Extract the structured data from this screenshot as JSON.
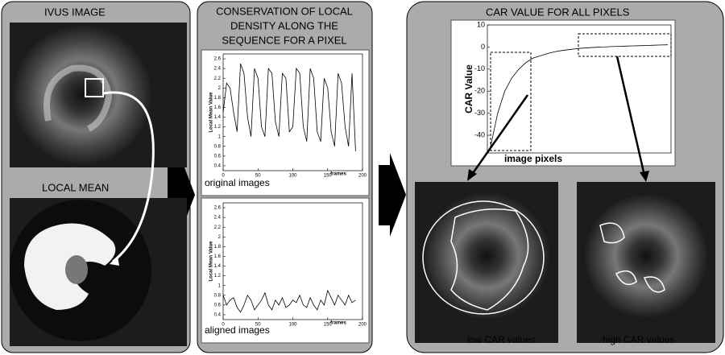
{
  "left_panel": {
    "title": "IVUS IMAGE",
    "subtitle": "LOCAL MEAN"
  },
  "middle_panel": {
    "title": [
      "CONSERVATION OF LOCAL",
      "DENSITY ALONG THE",
      "SEQUENCE FOR A PIXEL"
    ],
    "charts": [
      {
        "type": "line",
        "caption": "original images",
        "y_label": "Local Mean Value",
        "x_label": "frames",
        "x": [
          0,
          5,
          10,
          15,
          20,
          25,
          30,
          35,
          40,
          45,
          50,
          55,
          60,
          65,
          70,
          75,
          80,
          85,
          90,
          95,
          100,
          105,
          110,
          115,
          120,
          125,
          130,
          135,
          140,
          145,
          150,
          155,
          160,
          165,
          170,
          175,
          180,
          185,
          190
        ],
        "values": [
          1.5,
          2.1,
          2.0,
          1.5,
          1.1,
          2.5,
          2.3,
          1.4,
          1.0,
          2.4,
          2.2,
          1.2,
          1.0,
          2.4,
          2.3,
          1.3,
          1.0,
          2.3,
          2.2,
          1.1,
          1.2,
          2.4,
          2.3,
          1.2,
          0.9,
          2.4,
          2.2,
          1.1,
          0.9,
          2.2,
          2.0,
          1.1,
          0.8,
          2.3,
          2.1,
          1.2,
          0.8,
          2.3,
          0.7
        ],
        "color": "#000000",
        "xlim": [
          0,
          200
        ],
        "ylim": [
          0.3,
          2.7
        ],
        "xticks": [
          0,
          50,
          100,
          150,
          200
        ],
        "yticks": [
          0.4,
          0.6,
          0.8,
          1,
          1.2,
          1.4,
          1.6,
          1.8,
          2,
          2.2,
          2.4,
          2.6
        ]
      },
      {
        "type": "line",
        "caption": "aligned images",
        "y_label": "Local Mean Value",
        "x_label": "frames",
        "x": [
          0,
          5,
          10,
          15,
          20,
          25,
          30,
          35,
          40,
          45,
          50,
          55,
          60,
          65,
          70,
          75,
          80,
          85,
          90,
          95,
          100,
          105,
          110,
          115,
          120,
          125,
          130,
          135,
          140,
          145,
          150,
          155,
          160,
          165,
          170,
          175,
          180,
          185,
          190
        ],
        "values": [
          0.8,
          0.6,
          0.7,
          0.75,
          0.55,
          0.45,
          0.6,
          0.8,
          0.7,
          0.5,
          0.6,
          0.7,
          0.85,
          0.6,
          0.5,
          0.7,
          0.6,
          0.75,
          0.55,
          0.6,
          0.7,
          0.65,
          0.8,
          0.6,
          0.55,
          0.75,
          0.6,
          0.5,
          0.7,
          0.6,
          0.9,
          0.75,
          0.6,
          0.8,
          0.7,
          0.6,
          0.8,
          0.65,
          0.7
        ],
        "color": "#000000",
        "xlim": [
          0,
          200
        ],
        "ylim": [
          0.3,
          2.7
        ],
        "xticks": [
          0,
          50,
          100,
          150,
          200
        ],
        "yticks": [
          0.4,
          0.6,
          0.8,
          1,
          1.2,
          1.4,
          1.6,
          1.8,
          2,
          2.2,
          2.4,
          2.6
        ]
      }
    ]
  },
  "right_panel": {
    "title": "CAR VALUE FOR ALL PIXELS",
    "chart": {
      "type": "line",
      "y_label": "CAR Value",
      "x_label": "image pixels",
      "color": "#000000",
      "values": [
        -45,
        -30,
        -20,
        -14,
        -10,
        -7,
        -5,
        -4,
        -3,
        -2.2,
        -1.6,
        -1.2,
        -0.8,
        -0.5,
        -0.3,
        -0.1,
        0,
        0.2,
        0.3,
        0.4,
        0.5,
        0.6,
        0.7,
        0.8,
        0.9,
        1
      ],
      "ylim": [
        -48,
        10
      ],
      "yticks": [
        10,
        0,
        -10,
        -20,
        -30,
        -40
      ]
    },
    "captions": [
      "low CAR values",
      "high CAR values"
    ]
  }
}
